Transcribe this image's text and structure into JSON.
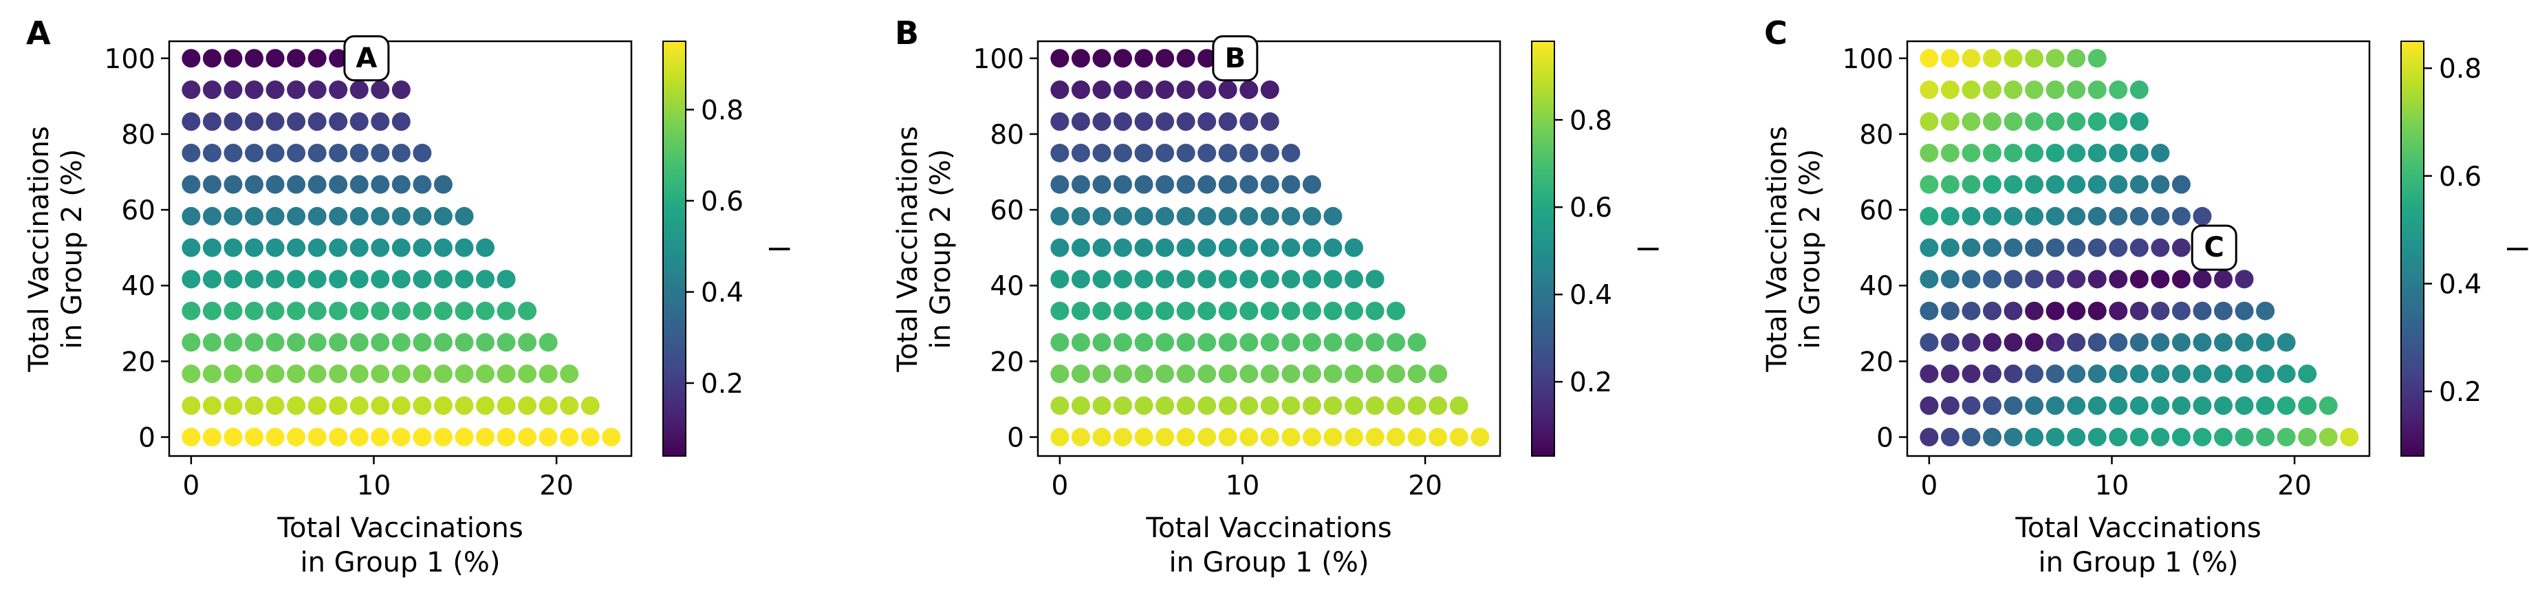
{
  "chart_data": [
    {
      "panel_label": "A",
      "type": "scatter",
      "annotation": "A",
      "annotation_point": {
        "x": 9.6,
        "y": 100
      },
      "xlabel": [
        "Total Vaccinations",
        "in Group 1 (%)"
      ],
      "ylabel": [
        "Total Vaccinations",
        "in Group 2 (%)"
      ],
      "xticks": [
        "0",
        "10",
        "20"
      ],
      "yticks": [
        "0",
        "20",
        "40",
        "60",
        "80",
        "100"
      ],
      "xlim": [
        -1.2,
        24.1
      ],
      "ylim": [
        -5,
        104.5
      ],
      "colorbar": {
        "label": "l",
        "ticks": [
          "0.2",
          "0.4",
          "0.6",
          "0.8"
        ],
        "range": [
          0.04,
          0.95
        ],
        "colormap": "viridis"
      },
      "x_grid": [
        0,
        1.15,
        2.3,
        3.45,
        4.6,
        5.75,
        6.9,
        8.05,
        9.2,
        10.35,
        11.5,
        12.65,
        13.8,
        14.95,
        16.1,
        17.25,
        18.4,
        19.55,
        20.7,
        21.85,
        23.0
      ],
      "rows": [
        {
          "y": 0,
          "values": [
            0.95,
            0.95,
            0.95,
            0.95,
            0.95,
            0.95,
            0.95,
            0.95,
            0.95,
            0.95,
            0.95,
            0.95,
            0.95,
            0.95,
            0.95,
            0.95,
            0.95,
            0.95,
            0.95,
            0.95,
            0.95
          ]
        },
        {
          "y": 8.3,
          "values": [
            0.86,
            0.86,
            0.86,
            0.86,
            0.86,
            0.86,
            0.86,
            0.86,
            0.86,
            0.86,
            0.86,
            0.86,
            0.86,
            0.86,
            0.86,
            0.86,
            0.86,
            0.86,
            0.86,
            0.86
          ]
        },
        {
          "y": 16.7,
          "values": [
            0.77,
            0.77,
            0.77,
            0.77,
            0.77,
            0.77,
            0.77,
            0.77,
            0.77,
            0.77,
            0.77,
            0.77,
            0.77,
            0.77,
            0.77,
            0.77,
            0.77,
            0.77,
            0.77
          ]
        },
        {
          "y": 25.0,
          "values": [
            0.71,
            0.71,
            0.71,
            0.71,
            0.71,
            0.71,
            0.71,
            0.71,
            0.71,
            0.71,
            0.71,
            0.71,
            0.71,
            0.71,
            0.71,
            0.71,
            0.71,
            0.71
          ]
        },
        {
          "y": 33.3,
          "values": [
            0.63,
            0.63,
            0.63,
            0.63,
            0.63,
            0.63,
            0.63,
            0.63,
            0.63,
            0.63,
            0.63,
            0.63,
            0.63,
            0.63,
            0.63,
            0.63,
            0.63
          ]
        },
        {
          "y": 41.7,
          "values": [
            0.55,
            0.55,
            0.55,
            0.55,
            0.55,
            0.55,
            0.55,
            0.55,
            0.55,
            0.55,
            0.55,
            0.55,
            0.55,
            0.55,
            0.55,
            0.55
          ]
        },
        {
          "y": 50.0,
          "values": [
            0.5,
            0.5,
            0.5,
            0.5,
            0.5,
            0.5,
            0.5,
            0.5,
            0.5,
            0.5,
            0.5,
            0.5,
            0.5,
            0.5,
            0.5
          ]
        },
        {
          "y": 58.3,
          "values": [
            0.42,
            0.42,
            0.42,
            0.42,
            0.42,
            0.42,
            0.42,
            0.42,
            0.42,
            0.42,
            0.42,
            0.42,
            0.42,
            0.42
          ]
        },
        {
          "y": 66.7,
          "values": [
            0.35,
            0.35,
            0.35,
            0.35,
            0.35,
            0.35,
            0.35,
            0.35,
            0.35,
            0.35,
            0.35,
            0.35,
            0.35
          ]
        },
        {
          "y": 75.0,
          "values": [
            0.28,
            0.28,
            0.28,
            0.28,
            0.28,
            0.28,
            0.28,
            0.28,
            0.28,
            0.28,
            0.28,
            0.28
          ]
        },
        {
          "y": 83.3,
          "values": [
            0.21,
            0.21,
            0.21,
            0.21,
            0.21,
            0.21,
            0.21,
            0.21,
            0.21,
            0.21,
            0.21
          ]
        },
        {
          "y": 91.7,
          "values": [
            0.13,
            0.13,
            0.13,
            0.13,
            0.13,
            0.13,
            0.13,
            0.13,
            0.13,
            0.13,
            0.13
          ]
        },
        {
          "y": 100.0,
          "values": [
            0.05,
            0.05,
            0.05,
            0.05,
            0.05,
            0.05,
            0.05,
            0.05,
            0.05,
            0.05
          ]
        }
      ]
    },
    {
      "panel_label": "B",
      "type": "scatter",
      "annotation": "B",
      "annotation_point": {
        "x": 9.6,
        "y": 100
      },
      "xlabel": [
        "Total Vaccinations",
        "in Group 1 (%)"
      ],
      "ylabel": [
        "Total Vaccinations",
        "in Group 2 (%)"
      ],
      "xticks": [
        "0",
        "10",
        "20"
      ],
      "yticks": [
        "0",
        "20",
        "40",
        "60",
        "80",
        "100"
      ],
      "xlim": [
        -1.2,
        24.1
      ],
      "ylim": [
        -5,
        104.5
      ],
      "colorbar": {
        "label": "l",
        "ticks": [
          "0.2",
          "0.4",
          "0.6",
          "0.8"
        ],
        "range": [
          0.03,
          0.98
        ],
        "colormap": "viridis"
      },
      "x_grid": [
        0,
        1.15,
        2.3,
        3.45,
        4.6,
        5.75,
        6.9,
        8.05,
        9.2,
        10.35,
        11.5,
        12.65,
        13.8,
        14.95,
        16.1,
        17.25,
        18.4,
        19.55,
        20.7,
        21.85,
        23.0
      ],
      "rows": [
        {
          "y": 0,
          "values": [
            0.96,
            0.96,
            0.96,
            0.96,
            0.96,
            0.96,
            0.96,
            0.96,
            0.96,
            0.96,
            0.96,
            0.96,
            0.96,
            0.96,
            0.96,
            0.96,
            0.96,
            0.96,
            0.96,
            0.96,
            0.96
          ]
        },
        {
          "y": 8.3,
          "values": [
            0.86,
            0.86,
            0.86,
            0.86,
            0.86,
            0.86,
            0.86,
            0.86,
            0.86,
            0.86,
            0.86,
            0.86,
            0.86,
            0.86,
            0.86,
            0.86,
            0.86,
            0.86,
            0.86,
            0.86
          ]
        },
        {
          "y": 16.7,
          "values": [
            0.77,
            0.77,
            0.77,
            0.77,
            0.77,
            0.77,
            0.77,
            0.77,
            0.77,
            0.77,
            0.77,
            0.77,
            0.77,
            0.77,
            0.77,
            0.77,
            0.77,
            0.77,
            0.77
          ]
        },
        {
          "y": 25.0,
          "values": [
            0.72,
            0.72,
            0.72,
            0.72,
            0.72,
            0.72,
            0.72,
            0.72,
            0.72,
            0.72,
            0.72,
            0.72,
            0.72,
            0.72,
            0.72,
            0.72,
            0.72,
            0.72
          ]
        },
        {
          "y": 33.3,
          "values": [
            0.62,
            0.62,
            0.62,
            0.62,
            0.62,
            0.62,
            0.62,
            0.62,
            0.62,
            0.62,
            0.62,
            0.62,
            0.62,
            0.62,
            0.62,
            0.62,
            0.62
          ]
        },
        {
          "y": 41.7,
          "values": [
            0.56,
            0.56,
            0.56,
            0.56,
            0.56,
            0.56,
            0.56,
            0.56,
            0.56,
            0.56,
            0.56,
            0.56,
            0.56,
            0.56,
            0.56,
            0.56
          ]
        },
        {
          "y": 50.0,
          "values": [
            0.5,
            0.5,
            0.5,
            0.5,
            0.5,
            0.5,
            0.5,
            0.5,
            0.5,
            0.5,
            0.5,
            0.5,
            0.5,
            0.5,
            0.5
          ]
        },
        {
          "y": 58.3,
          "values": [
            0.42,
            0.42,
            0.42,
            0.42,
            0.42,
            0.42,
            0.42,
            0.42,
            0.42,
            0.42,
            0.42,
            0.42,
            0.42,
            0.42
          ]
        },
        {
          "y": 66.7,
          "values": [
            0.34,
            0.34,
            0.34,
            0.34,
            0.34,
            0.34,
            0.34,
            0.34,
            0.34,
            0.34,
            0.34,
            0.34,
            0.34
          ]
        },
        {
          "y": 75.0,
          "values": [
            0.27,
            0.27,
            0.27,
            0.27,
            0.27,
            0.27,
            0.27,
            0.27,
            0.27,
            0.27,
            0.27,
            0.27
          ]
        },
        {
          "y": 83.3,
          "values": [
            0.2,
            0.2,
            0.2,
            0.2,
            0.2,
            0.2,
            0.2,
            0.2,
            0.2,
            0.2,
            0.2
          ]
        },
        {
          "y": 91.7,
          "values": [
            0.11,
            0.11,
            0.11,
            0.11,
            0.11,
            0.11,
            0.11,
            0.11,
            0.11,
            0.11,
            0.11
          ]
        },
        {
          "y": 100.0,
          "values": [
            0.04,
            0.04,
            0.04,
            0.04,
            0.04,
            0.04,
            0.04,
            0.04,
            0.04,
            0.04
          ]
        }
      ]
    },
    {
      "panel_label": "C",
      "type": "scatter",
      "annotation": "C",
      "annotation_point": {
        "x": 15.6,
        "y": 50
      },
      "xlabel": [
        "Total Vaccinations",
        "in Group 1 (%)"
      ],
      "ylabel": [
        "Total Vaccinations",
        "in Group 2 (%)"
      ],
      "xticks": [
        "0",
        "10",
        "20"
      ],
      "yticks": [
        "0",
        "20",
        "40",
        "60",
        "80",
        "100"
      ],
      "xlim": [
        -1.2,
        24.1
      ],
      "ylim": [
        -5,
        104.5
      ],
      "colorbar": {
        "label": "l",
        "ticks": [
          "0.2",
          "0.4",
          "0.6",
          "0.8"
        ],
        "range": [
          0.08,
          0.85
        ],
        "colormap": "viridis"
      },
      "x_grid": [
        0,
        1.15,
        2.3,
        3.45,
        4.6,
        5.75,
        6.9,
        8.05,
        9.2,
        10.35,
        11.5,
        12.65,
        13.8,
        14.95,
        16.1,
        17.25,
        18.4,
        19.55,
        20.7,
        21.85,
        23.0
      ],
      "rows": [
        {
          "y": 0,
          "values": [
            0.2,
            0.24,
            0.3,
            0.35,
            0.4,
            0.45,
            0.48,
            0.5,
            0.51,
            0.52,
            0.53,
            0.53,
            0.54,
            0.55,
            0.56,
            0.58,
            0.6,
            0.63,
            0.67,
            0.72,
            0.8
          ]
        },
        {
          "y": 8.3,
          "values": [
            0.18,
            0.2,
            0.24,
            0.28,
            0.33,
            0.38,
            0.42,
            0.45,
            0.47,
            0.48,
            0.49,
            0.5,
            0.5,
            0.51,
            0.51,
            0.52,
            0.53,
            0.55,
            0.57,
            0.6
          ]
        },
        {
          "y": 16.7,
          "values": [
            0.17,
            0.17,
            0.17,
            0.19,
            0.22,
            0.27,
            0.32,
            0.37,
            0.4,
            0.42,
            0.44,
            0.45,
            0.46,
            0.47,
            0.47,
            0.48,
            0.49,
            0.5,
            0.52
          ]
        },
        {
          "y": 25.0,
          "values": [
            0.26,
            0.22,
            0.18,
            0.14,
            0.13,
            0.12,
            0.17,
            0.22,
            0.27,
            0.31,
            0.35,
            0.38,
            0.4,
            0.41,
            0.42,
            0.43,
            0.44,
            0.44
          ]
        },
        {
          "y": 33.3,
          "values": [
            0.33,
            0.3,
            0.26,
            0.22,
            0.18,
            0.12,
            0.1,
            0.1,
            0.1,
            0.13,
            0.17,
            0.22,
            0.26,
            0.29,
            0.31,
            0.33,
            0.35
          ]
        },
        {
          "y": 41.7,
          "values": [
            0.4,
            0.37,
            0.34,
            0.31,
            0.27,
            0.24,
            0.2,
            0.17,
            0.14,
            0.12,
            0.1,
            0.1,
            0.1,
            0.12,
            0.14,
            0.17
          ]
        },
        {
          "y": 50.0,
          "values": [
            0.45,
            0.43,
            0.4,
            0.38,
            0.35,
            0.33,
            0.31,
            0.29,
            0.27,
            0.25,
            0.23,
            0.2,
            0.18,
            0.17,
            0.16
          ]
        },
        {
          "y": 58.3,
          "values": [
            0.55,
            0.52,
            0.5,
            0.48,
            0.46,
            0.44,
            0.42,
            0.4,
            0.38,
            0.36,
            0.34,
            0.32,
            0.3,
            0.26
          ]
        },
        {
          "y": 66.7,
          "values": [
            0.62,
            0.6,
            0.58,
            0.55,
            0.53,
            0.51,
            0.49,
            0.47,
            0.45,
            0.43,
            0.4,
            0.37,
            0.33
          ]
        },
        {
          "y": 75.0,
          "values": [
            0.68,
            0.66,
            0.63,
            0.61,
            0.59,
            0.56,
            0.54,
            0.52,
            0.5,
            0.48,
            0.45,
            0.42
          ]
        },
        {
          "y": 83.3,
          "values": [
            0.75,
            0.73,
            0.7,
            0.68,
            0.66,
            0.63,
            0.61,
            0.59,
            0.57,
            0.55,
            0.52
          ]
        },
        {
          "y": 91.7,
          "values": [
            0.8,
            0.78,
            0.76,
            0.74,
            0.72,
            0.7,
            0.68,
            0.66,
            0.64,
            0.62,
            0.59
          ]
        },
        {
          "y": 100.0,
          "values": [
            0.86,
            0.84,
            0.82,
            0.8,
            0.77,
            0.74,
            0.71,
            0.68,
            0.64
          ]
        }
      ]
    }
  ]
}
